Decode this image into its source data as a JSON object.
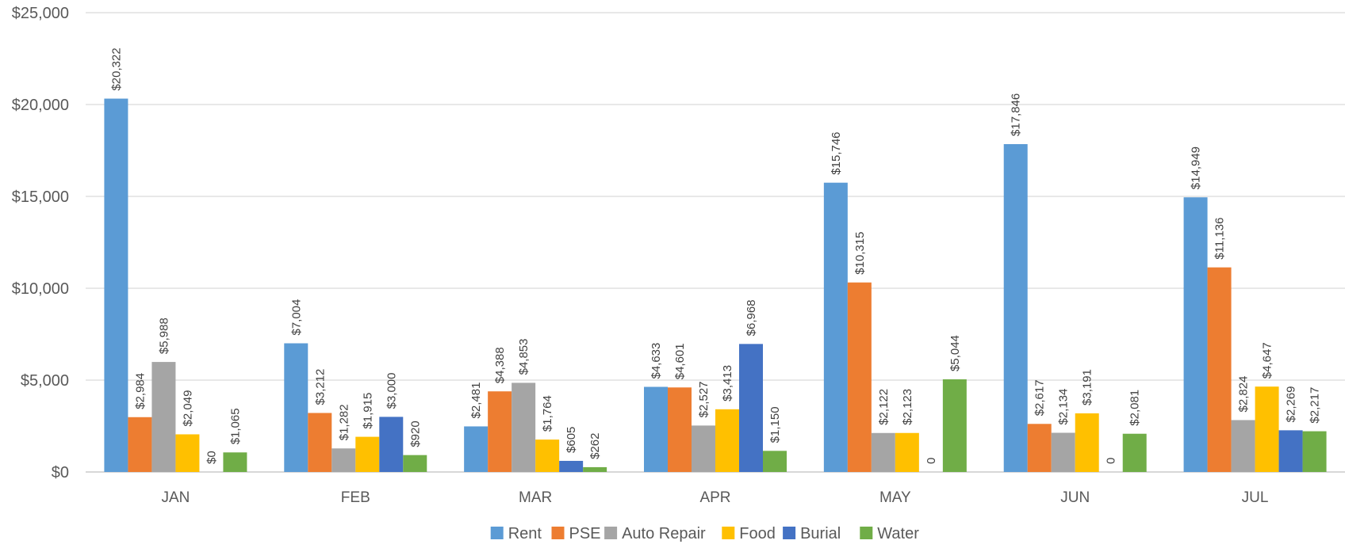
{
  "chart_data": {
    "type": "bar",
    "title": "",
    "xlabel": "",
    "ylabel": "",
    "ylim": [
      0,
      25000
    ],
    "yticks": [
      "$0",
      "$5,000",
      "$10,000",
      "$15,000",
      "$20,000",
      "$25,000"
    ],
    "ytick_values": [
      0,
      5000,
      10000,
      15000,
      20000,
      25000
    ],
    "grid": true,
    "legend_position": "bottom",
    "categories": [
      "JAN",
      "FEB",
      "MAR",
      "APR",
      "MAY",
      "JUN",
      "JUL"
    ],
    "series": [
      {
        "name": "Rent",
        "color": "#5B9BD5",
        "values": [
          20322,
          7004,
          2481,
          4633,
          15746,
          17846,
          14949
        ],
        "labels": [
          "$20,322",
          "$7,004",
          "$2,481",
          "$4,633",
          "$15,746",
          "$17,846",
          "$14,949"
        ]
      },
      {
        "name": "PSE",
        "color": "#ED7D31",
        "values": [
          2984,
          3212,
          4388,
          4601,
          10315,
          2617,
          11136
        ],
        "labels": [
          "$2,984",
          "$3,212",
          "$4,388",
          "$4,601",
          "$10,315",
          "$2,617",
          "$11,136"
        ]
      },
      {
        "name": "Auto Repair",
        "color": "#A5A5A5",
        "values": [
          5988,
          1282,
          4853,
          2527,
          2122,
          2134,
          2824
        ],
        "labels": [
          "$5,988",
          "$1,282",
          "$4,853",
          "$2,527",
          "$2,122",
          "$2,134",
          "$2,824"
        ]
      },
      {
        "name": "Food",
        "color": "#FFC000",
        "values": [
          2049,
          1915,
          1764,
          3413,
          2123,
          3191,
          4647
        ],
        "labels": [
          "$2,049",
          "$1,915",
          "$1,764",
          "$3,413",
          "$2,123",
          "$3,191",
          "$4,647"
        ]
      },
      {
        "name": "Burial",
        "color": "#4472C4",
        "values": [
          0,
          3000,
          605,
          6968,
          0,
          0,
          2269
        ],
        "labels": [
          "$0",
          "$3,000",
          "$605",
          "$6,968",
          "0",
          "0",
          "$2,269"
        ]
      },
      {
        "name": "Water",
        "color": "#70AD47",
        "values": [
          1065,
          920,
          262,
          1150,
          5044,
          2081,
          2217
        ],
        "labels": [
          "$1,065",
          "$920",
          "$262",
          "$1,150",
          "$5,044",
          "$2,081",
          "$2,217"
        ]
      }
    ]
  }
}
